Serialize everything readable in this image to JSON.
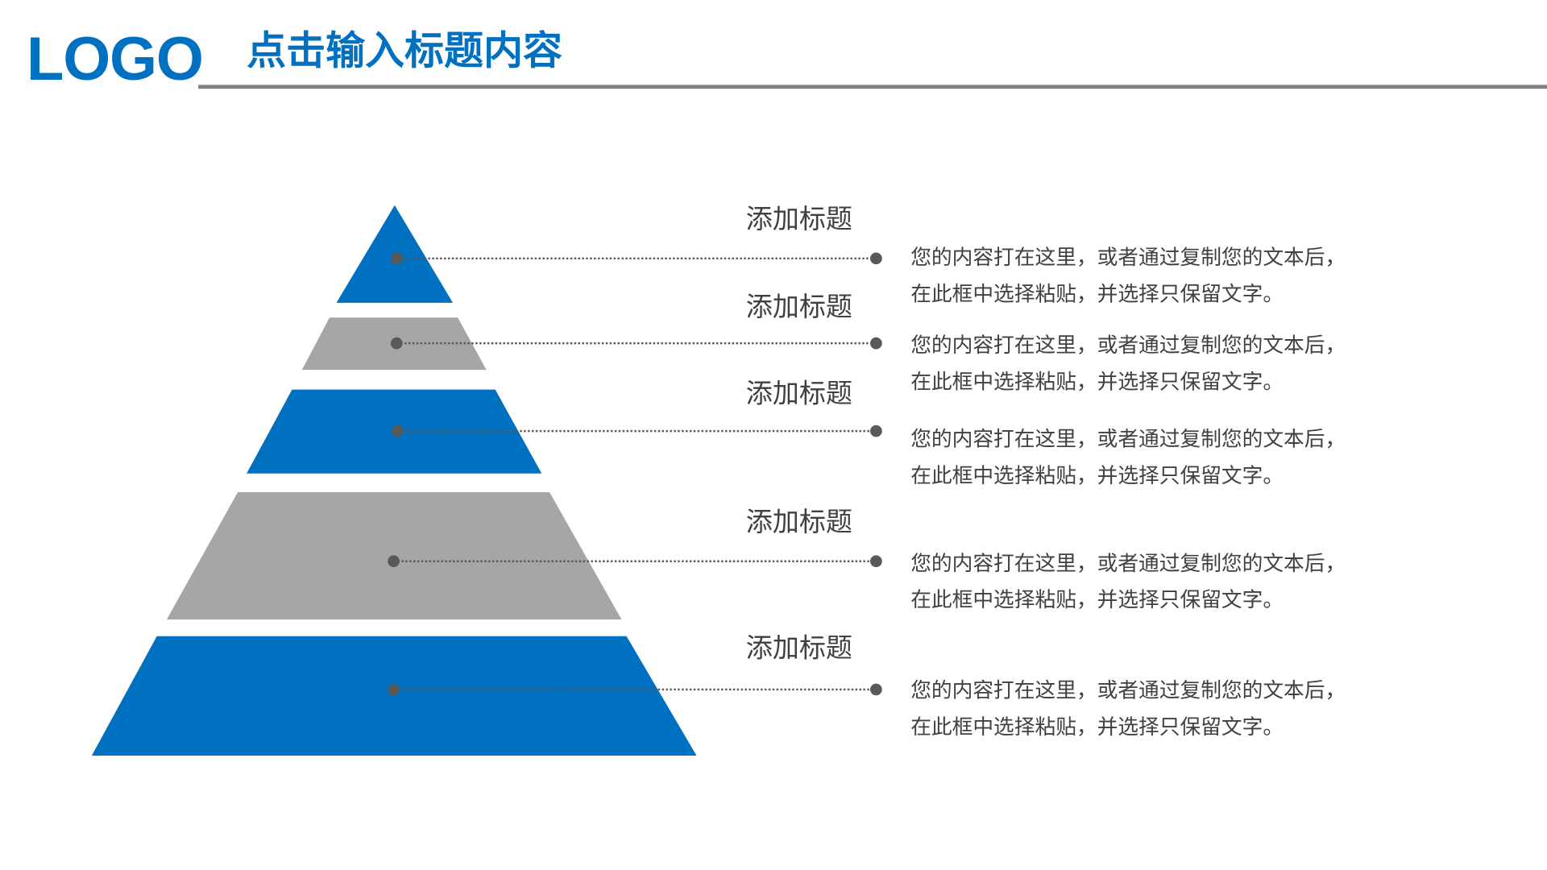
{
  "header": {
    "logo": "LOGO",
    "title": "点击输入标题内容"
  },
  "colors": {
    "accent": "#0070C0",
    "gray": "#A6A6A6",
    "text": "#404040",
    "rule": "#808080"
  },
  "levels": [
    {
      "title": "添加标题",
      "line1": "您的内容打在这里，或者通过复制您的文本后，",
      "line2": "在此框中选择粘贴，并选择只保留文字。",
      "color": "blue"
    },
    {
      "title": "添加标题",
      "line1": "您的内容打在这里，或者通过复制您的文本后，",
      "line2": "在此框中选择粘贴，并选择只保留文字。",
      "color": "gray"
    },
    {
      "title": "添加标题",
      "line1": "您的内容打在这里，或者通过复制您的文本后，",
      "line2": "在此框中选择粘贴，并选择只保留文字。",
      "color": "blue"
    },
    {
      "title": "添加标题",
      "line1": "您的内容打在这里，或者通过复制您的文本后，",
      "line2": "在此框中选择粘贴，并选择只保留文字。",
      "color": "gray"
    },
    {
      "title": "添加标题",
      "line1": "您的内容打在这里，或者通过复制您的文本后，",
      "line2": "在此框中选择粘贴，并选择只保留文字。",
      "color": "blue"
    }
  ]
}
